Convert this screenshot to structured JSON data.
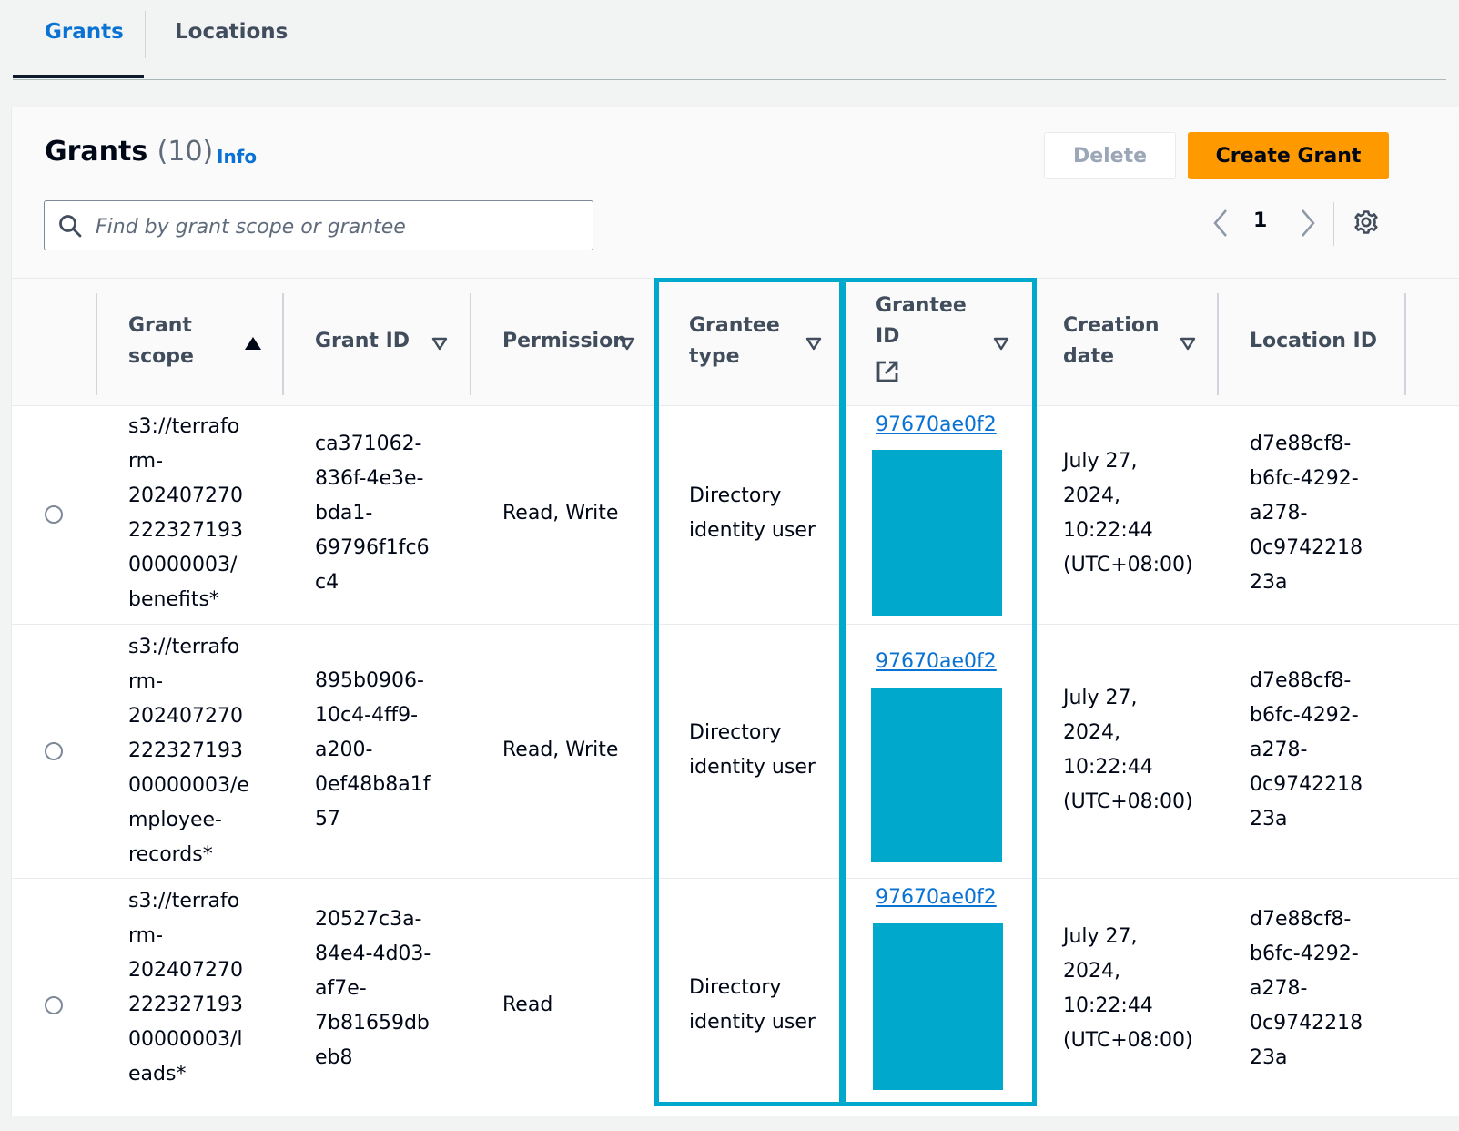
{
  "tabs": [
    {
      "label": "Grants",
      "active": true
    },
    {
      "label": "Locations",
      "active": false
    }
  ],
  "header": {
    "title": "Grants",
    "count": "(10)",
    "info_label": "Info",
    "delete_label": "Delete",
    "create_label": "Create Grant"
  },
  "search": {
    "placeholder": "Find by grant scope or grantee",
    "value": ""
  },
  "pagination": {
    "current_page": "1"
  },
  "columns": {
    "grant_scope": "Grant\nscope",
    "grant_id": "Grant ID",
    "permission": "Permission",
    "grantee_type": "Grantee\ntype",
    "grantee_id": "Grantee\nID",
    "creation_date": "Creation\ndate",
    "location_id": "Location ID"
  },
  "sort": {
    "column": "grant_scope",
    "direction": "ascending"
  },
  "rows": [
    {
      "grant_scope": "s3://terrafo\nrm-\n202407270\n222327193\n00000003/\nbenefits*",
      "grant_id": "ca371062-\n836f-4e3e-\nbda1-\n69796f1fc6\nc4",
      "permission": "Read, Write",
      "grantee_type": "Directory\nidentity user",
      "grantee_id": "97670ae0f2",
      "creation_date": "July 27,\n2024,\n10:22:44\n(UTC+08:00)",
      "location_id": "d7e88cf8-\nb6fc-4292-\na278-\n0c9742218\n23a"
    },
    {
      "grant_scope": "s3://terrafo\nrm-\n202407270\n222327193\n00000003/e\nmployee-\nrecords*",
      "grant_id": "895b0906-\n10c4-4ff9-\na200-\n0ef48b8a1f\n57",
      "permission": "Read, Write",
      "grantee_type": "Directory\nidentity user",
      "grantee_id": "97670ae0f2",
      "creation_date": "July 27,\n2024,\n10:22:44\n(UTC+08:00)",
      "location_id": "d7e88cf8-\nb6fc-4292-\na278-\n0c9742218\n23a"
    },
    {
      "grant_scope": "s3://terrafo\nrm-\n202407270\n222327193\n00000003/l\neads*",
      "grant_id": "20527c3a-\n84e4-4d03-\naf7e-\n7b81659db\neb8",
      "permission": "Read",
      "grantee_type": "Directory\nidentity user",
      "grantee_id": "97670ae0f2",
      "creation_date": "July 27,\n2024,\n10:22:44\n(UTC+08:00)",
      "location_id": "d7e88cf8-\nb6fc-4292-\na278-\n0c9742218\n23a"
    }
  ],
  "colors": {
    "accent_blue": "#0972d3",
    "primary_button": "#ff9900",
    "highlight_cyan": "#00a8cc"
  },
  "icons": {
    "search": "search-icon",
    "settings": "gear-icon",
    "external_link": "external-link-icon",
    "prev": "chevron-left-icon",
    "next": "chevron-right-icon"
  }
}
